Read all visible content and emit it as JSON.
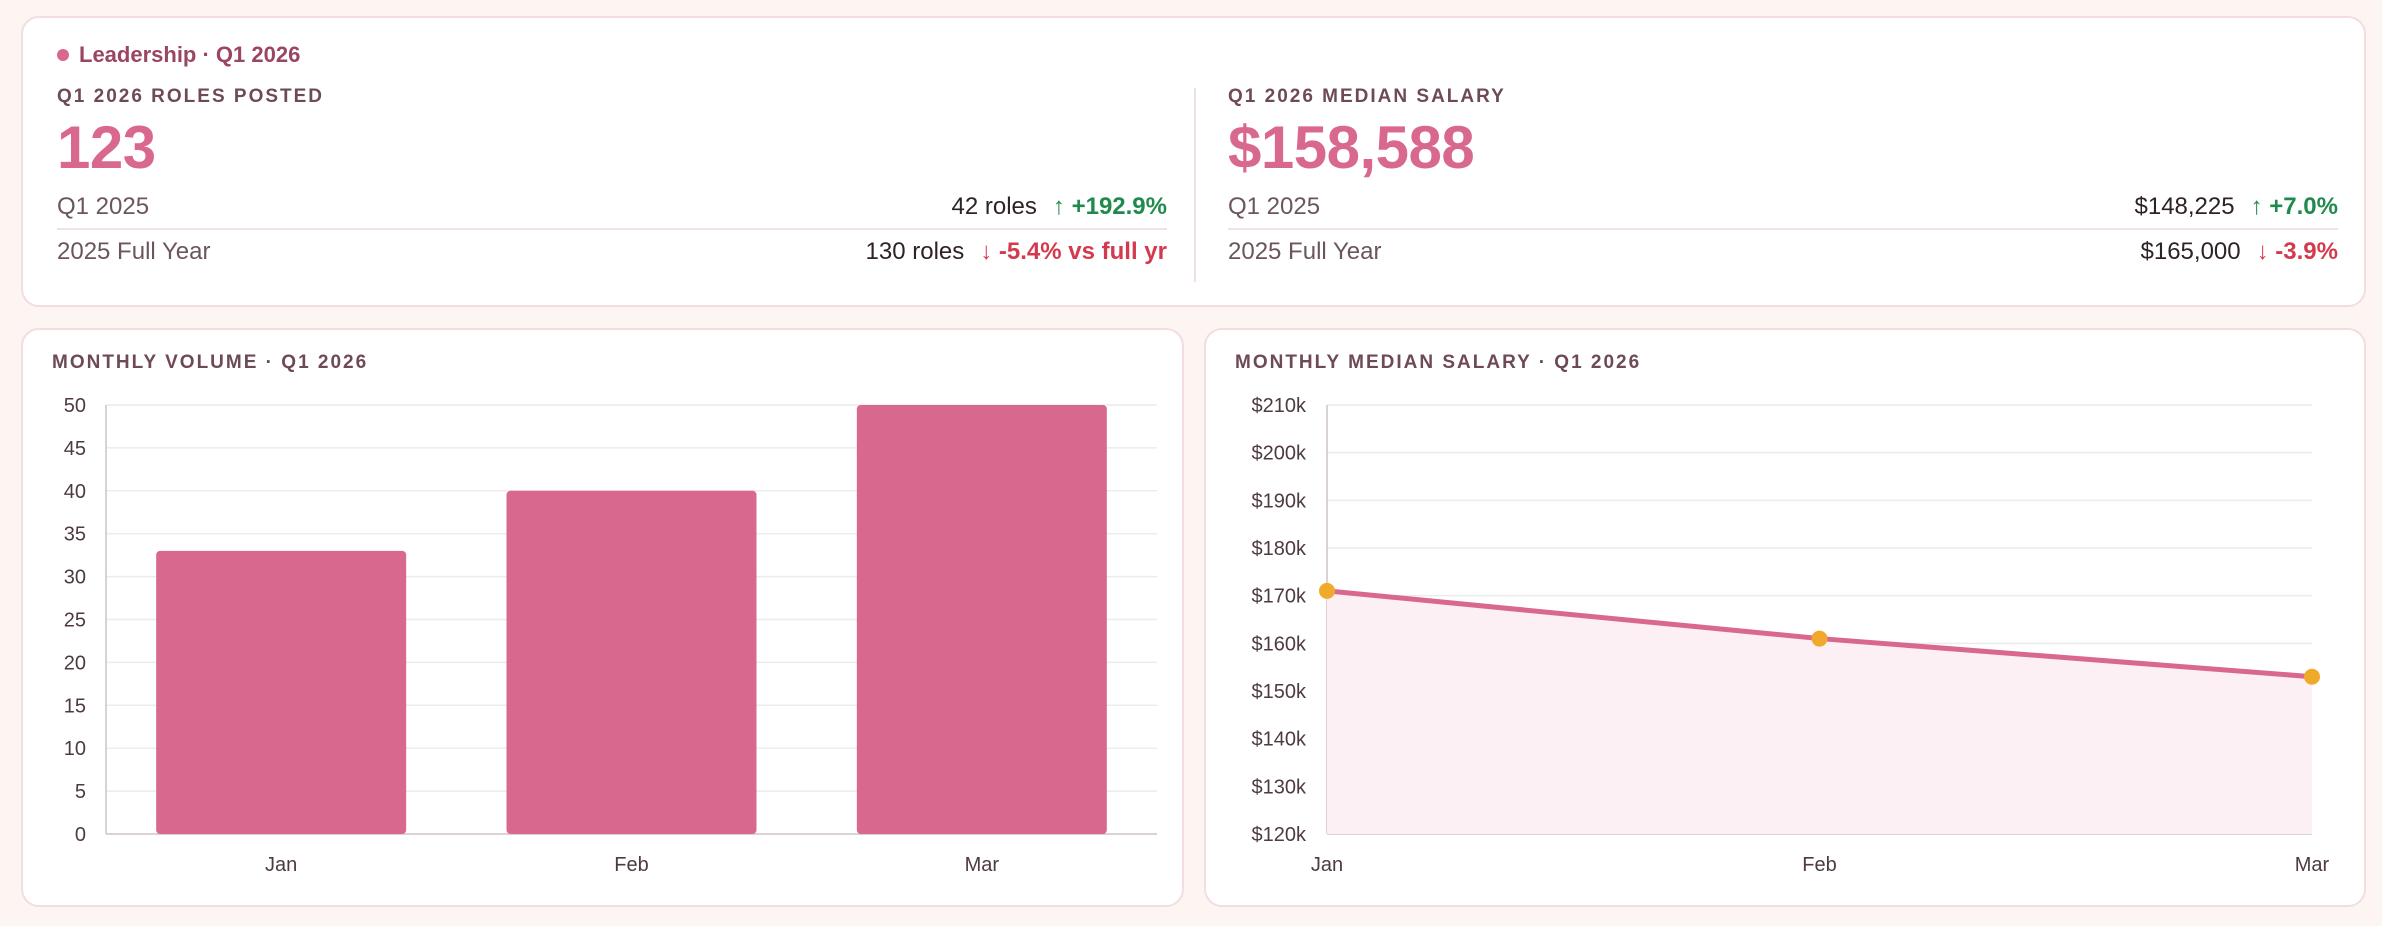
{
  "segment": {
    "label": "Leadership · Q1 2026"
  },
  "kpis": {
    "roles": {
      "title": "Q1 2026 ROLES POSTED",
      "value": "123",
      "rows": [
        {
          "label": "Q1 2025",
          "value": "42 roles",
          "delta": "↑ +192.9%",
          "direction": "up"
        },
        {
          "label": "2025 Full Year",
          "value": "130 roles",
          "delta": "↓ -5.4% vs full yr",
          "direction": "down"
        }
      ]
    },
    "salary": {
      "title": "Q1 2026 MEDIAN SALARY",
      "value": "$158,588",
      "rows": [
        {
          "label": "Q1 2025",
          "value": "$148,225",
          "delta": "↑ +7.0%",
          "direction": "up"
        },
        {
          "label": "2025 Full Year",
          "value": "$165,000",
          "delta": "↓ -3.9%",
          "direction": "down"
        }
      ]
    }
  },
  "colors": {
    "accent": "#d9688f",
    "marker": "#f0a92a",
    "area": "#fcf0f4",
    "up": "#1f8a4c",
    "down": "#d43a4e"
  },
  "chart_data": [
    {
      "type": "bar",
      "title": "MONTHLY VOLUME · Q1 2026",
      "categories": [
        "Jan",
        "Feb",
        "Mar"
      ],
      "values": [
        33,
        40,
        50
      ],
      "ylim": [
        0,
        50
      ],
      "yticks": [
        0,
        5,
        10,
        15,
        20,
        25,
        30,
        35,
        40,
        45,
        50
      ],
      "grid": true,
      "xlabel": "",
      "ylabel": ""
    },
    {
      "type": "area",
      "title": "MONTHLY MEDIAN SALARY · Q1 2026",
      "categories": [
        "Jan",
        "Feb",
        "Mar"
      ],
      "values": [
        171000,
        161000,
        153000
      ],
      "ylim": [
        120000,
        210000
      ],
      "yticks": [
        "$120k",
        "$130k",
        "$140k",
        "$150k",
        "$160k",
        "$170k",
        "$180k",
        "$190k",
        "$200k",
        "$210k"
      ],
      "grid": true,
      "xlabel": "",
      "ylabel": ""
    }
  ]
}
